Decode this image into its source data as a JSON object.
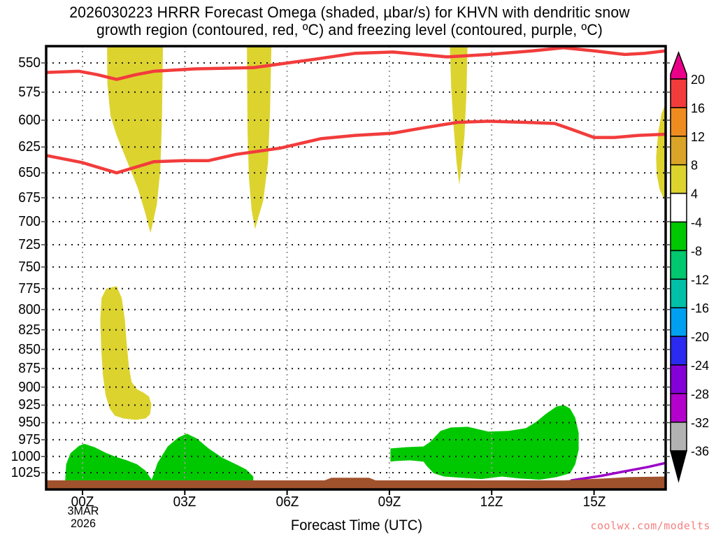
{
  "title": {
    "line1": "2026030223 HRRR Forecast Omega (shaded, µbar/s) for KHVN with dendritic snow",
    "line2": "growth region (contoured, red, ºC) and freezing level (contoured, purple, ºC)"
  },
  "x_axis": {
    "title": "Forecast Time (UTC)",
    "date_line1": "3MAR",
    "date_line2": "2026",
    "ticks": [
      {
        "t": 0,
        "label": "00Z"
      },
      {
        "t": 3,
        "label": "03Z"
      },
      {
        "t": 6,
        "label": "06Z"
      },
      {
        "t": 9,
        "label": "09Z"
      },
      {
        "t": 12,
        "label": "12Z"
      },
      {
        "t": 15,
        "label": "15Z"
      }
    ]
  },
  "y_axis": {
    "ticks": [
      550,
      575,
      600,
      625,
      650,
      675,
      700,
      725,
      750,
      775,
      800,
      825,
      850,
      875,
      900,
      925,
      950,
      975,
      1000,
      1025
    ]
  },
  "watermark": {
    "text": "coolwx.com/modelts",
    "color": "#f58080"
  },
  "chart_data": {
    "type": "area",
    "description": "Time-height (log pressure) cross-section: HRRR forecast omega shaded in µbar/s, dendritic snow growth region contoured red, freezing level contoured purple, brown = ground",
    "x_unit": "hours after 00Z 3 MAR 2026",
    "x_range": [
      -1.07,
      17.1
    ],
    "y_unit": "hPa",
    "y_scale": "log-pressure inverted",
    "shading_units": "µbar/s",
    "grid": "dotted horizontal every 25 hPa, dotted vertical every 3 h",
    "colorbar": {
      "labels": [
        "20",
        "16",
        "12",
        "8",
        "4",
        "-4",
        "-8",
        "-12",
        "-16",
        "-20",
        "-24",
        "-28",
        "-32",
        "-36"
      ],
      "cell_colors": [
        "#f23c3c",
        "#ef8c1f",
        "#d9a427",
        "#ddd32f",
        "#ffffff",
        "#00c800",
        "#00c86e",
        "#00c0a8",
        "#00a0f0",
        "#2a2af0",
        "#8400d8",
        "#b400cc",
        "#b2b2b2"
      ],
      "over_color": "#ea0089",
      "under_color": "#000000"
    },
    "regions": [
      {
        "name": "omega-column-1",
        "value": "4 to 8",
        "color": "#ddd32f",
        "points": [
          [
            0.72,
            535
          ],
          [
            2.36,
            535
          ],
          [
            2.33,
            600
          ],
          [
            2.28,
            648
          ],
          [
            2.18,
            682
          ],
          [
            2.04,
            705
          ],
          [
            1.99,
            712
          ],
          [
            1.85,
            692
          ],
          [
            1.62,
            665
          ],
          [
            1.3,
            638
          ],
          [
            1.0,
            614
          ],
          [
            0.82,
            596
          ],
          [
            0.73,
            568
          ]
        ]
      },
      {
        "name": "omega-column-2",
        "value": "4 to 8",
        "color": "#ddd32f",
        "points": [
          [
            4.82,
            535
          ],
          [
            5.54,
            535
          ],
          [
            5.5,
            592
          ],
          [
            5.44,
            640
          ],
          [
            5.3,
            678
          ],
          [
            5.12,
            700
          ],
          [
            5.06,
            708
          ],
          [
            4.96,
            688
          ],
          [
            4.88,
            655
          ],
          [
            4.84,
            610
          ]
        ]
      },
      {
        "name": "omega-column-3",
        "value": "4 to 8",
        "color": "#ddd32f",
        "points": [
          [
            10.77,
            535
          ],
          [
            11.29,
            535
          ],
          [
            11.26,
            575
          ],
          [
            11.2,
            615
          ],
          [
            11.1,
            648
          ],
          [
            11.05,
            662
          ],
          [
            10.97,
            640
          ],
          [
            10.88,
            605
          ],
          [
            10.81,
            570
          ]
        ]
      },
      {
        "name": "omega-right-edge",
        "value": "4 to 8",
        "color": "#ddd32f",
        "points": [
          [
            17.1,
            585
          ],
          [
            16.98,
            594
          ],
          [
            16.88,
            612
          ],
          [
            16.82,
            635
          ],
          [
            16.84,
            652
          ],
          [
            16.92,
            666
          ],
          [
            17.02,
            674
          ],
          [
            17.1,
            678
          ]
        ]
      },
      {
        "name": "omega-lowlevel-banana",
        "value": "4 to 8",
        "color": "#ddd32f",
        "points": [
          [
            1.0,
            772
          ],
          [
            1.15,
            786
          ],
          [
            1.24,
            812
          ],
          [
            1.3,
            845
          ],
          [
            1.36,
            872
          ],
          [
            1.44,
            893
          ],
          [
            1.6,
            903
          ],
          [
            1.8,
            908
          ],
          [
            1.95,
            913
          ],
          [
            2.02,
            924
          ],
          [
            1.98,
            938
          ],
          [
            1.85,
            944
          ],
          [
            1.55,
            946
          ],
          [
            1.2,
            944
          ],
          [
            0.95,
            940
          ],
          [
            0.8,
            930
          ],
          [
            0.68,
            912
          ],
          [
            0.6,
            885
          ],
          [
            0.55,
            850
          ],
          [
            0.52,
            812
          ],
          [
            0.56,
            786
          ],
          [
            0.7,
            775
          ]
        ]
      },
      {
        "name": "omega-updraft-blob-1",
        "value": "-8 to -4",
        "color": "#00c800",
        "points": [
          [
            -0.51,
            1040
          ],
          [
            -0.48,
            1012
          ],
          [
            -0.35,
            995
          ],
          [
            -0.1,
            984
          ],
          [
            0.05,
            981
          ],
          [
            0.35,
            986
          ],
          [
            0.7,
            995
          ],
          [
            1.0,
            1001
          ],
          [
            1.3,
            1006
          ],
          [
            1.6,
            1012
          ],
          [
            1.85,
            1022
          ],
          [
            2.03,
            1036
          ],
          [
            2.03,
            1046
          ],
          [
            -0.51,
            1046
          ]
        ]
      },
      {
        "name": "omega-updraft-blob-2",
        "value": "-8 to -4",
        "color": "#00c800",
        "points": [
          [
            2.03,
            1036
          ],
          [
            2.2,
            1010
          ],
          [
            2.5,
            985
          ],
          [
            2.8,
            972
          ],
          [
            3.06,
            966
          ],
          [
            3.35,
            973
          ],
          [
            3.7,
            988
          ],
          [
            4.1,
            1002
          ],
          [
            4.5,
            1012
          ],
          [
            4.8,
            1020
          ],
          [
            5.01,
            1031
          ],
          [
            5.01,
            1046
          ],
          [
            2.03,
            1046
          ]
        ]
      },
      {
        "name": "omega-updraft-blob-3",
        "value": "-8 to -4",
        "color": "#00c800",
        "points": [
          [
            9.03,
            1008
          ],
          [
            9.03,
            988
          ],
          [
            9.5,
            986
          ],
          [
            10.0,
            985
          ],
          [
            10.2,
            978
          ],
          [
            10.5,
            962
          ],
          [
            10.8,
            957
          ],
          [
            11.3,
            956
          ],
          [
            11.9,
            963
          ],
          [
            12.5,
            962
          ],
          [
            13.0,
            958
          ],
          [
            13.3,
            949
          ],
          [
            13.6,
            937
          ],
          [
            13.9,
            927
          ],
          [
            14.12,
            925
          ],
          [
            14.3,
            930
          ],
          [
            14.45,
            943
          ],
          [
            14.55,
            965
          ],
          [
            14.55,
            990
          ],
          [
            14.45,
            1012
          ],
          [
            14.3,
            1026
          ],
          [
            13.9,
            1032
          ],
          [
            13.4,
            1036
          ],
          [
            12.8,
            1034
          ],
          [
            12.3,
            1031
          ],
          [
            11.7,
            1035
          ],
          [
            11.1,
            1033
          ],
          [
            10.6,
            1031
          ],
          [
            10.3,
            1026
          ],
          [
            10.1,
            1015
          ],
          [
            10.0,
            1008
          ],
          [
            9.6,
            1006
          ],
          [
            9.2,
            1007
          ]
        ]
      }
    ],
    "contours": [
      {
        "name": "dendritic-growth-upper",
        "color": "#f23c3c",
        "width": 4.5,
        "points": [
          [
            -1.07,
            558
          ],
          [
            -0.1,
            557
          ],
          [
            0.45,
            560
          ],
          [
            1.0,
            564
          ],
          [
            1.55,
            560
          ],
          [
            2.09,
            557
          ],
          [
            3.3,
            555
          ],
          [
            5.0,
            554
          ],
          [
            6.8,
            547
          ],
          [
            8.0,
            542
          ],
          [
            9.1,
            541
          ],
          [
            10.7,
            545
          ],
          [
            11.9,
            543
          ],
          [
            13.2,
            540
          ],
          [
            14.1,
            537.5
          ],
          [
            15.0,
            540
          ],
          [
            15.9,
            543
          ],
          [
            16.5,
            542
          ],
          [
            17.1,
            540
          ]
        ]
      },
      {
        "name": "dendritic-growth-lower",
        "color": "#f23c3c",
        "width": 4.5,
        "points": [
          [
            -1.07,
            633
          ],
          [
            0,
            640
          ],
          [
            1.0,
            650
          ],
          [
            1.6,
            644
          ],
          [
            2.1,
            639
          ],
          [
            3.0,
            638
          ],
          [
            3.7,
            638
          ],
          [
            4.5,
            632
          ],
          [
            5.8,
            626
          ],
          [
            7.0,
            617
          ],
          [
            8.0,
            614
          ],
          [
            9.1,
            612
          ],
          [
            10.0,
            607
          ],
          [
            11.0,
            602
          ],
          [
            11.9,
            601
          ],
          [
            13.0,
            602
          ],
          [
            13.85,
            603
          ],
          [
            14.3,
            608
          ],
          [
            15.0,
            616
          ],
          [
            15.6,
            616
          ],
          [
            16.3,
            614
          ],
          [
            17.1,
            613
          ]
        ]
      },
      {
        "name": "freezing-level",
        "color": "#9b00c8",
        "width": 3.5,
        "points": [
          [
            14.34,
            1037
          ],
          [
            15.2,
            1030
          ],
          [
            16.0,
            1022
          ],
          [
            16.6,
            1016
          ],
          [
            17.1,
            1010
          ]
        ]
      }
    ],
    "ground": {
      "color": "#a0522d",
      "top": [
        [
          -1.07,
          1037
        ],
        [
          7.1,
          1037
        ],
        [
          7.3,
          1033
        ],
        [
          8.4,
          1033
        ],
        [
          8.6,
          1037
        ],
        [
          14.1,
          1037
        ],
        [
          14.5,
          1036
        ],
        [
          15.3,
          1034
        ],
        [
          16.0,
          1032
        ],
        [
          17.1,
          1031
        ]
      ]
    }
  }
}
